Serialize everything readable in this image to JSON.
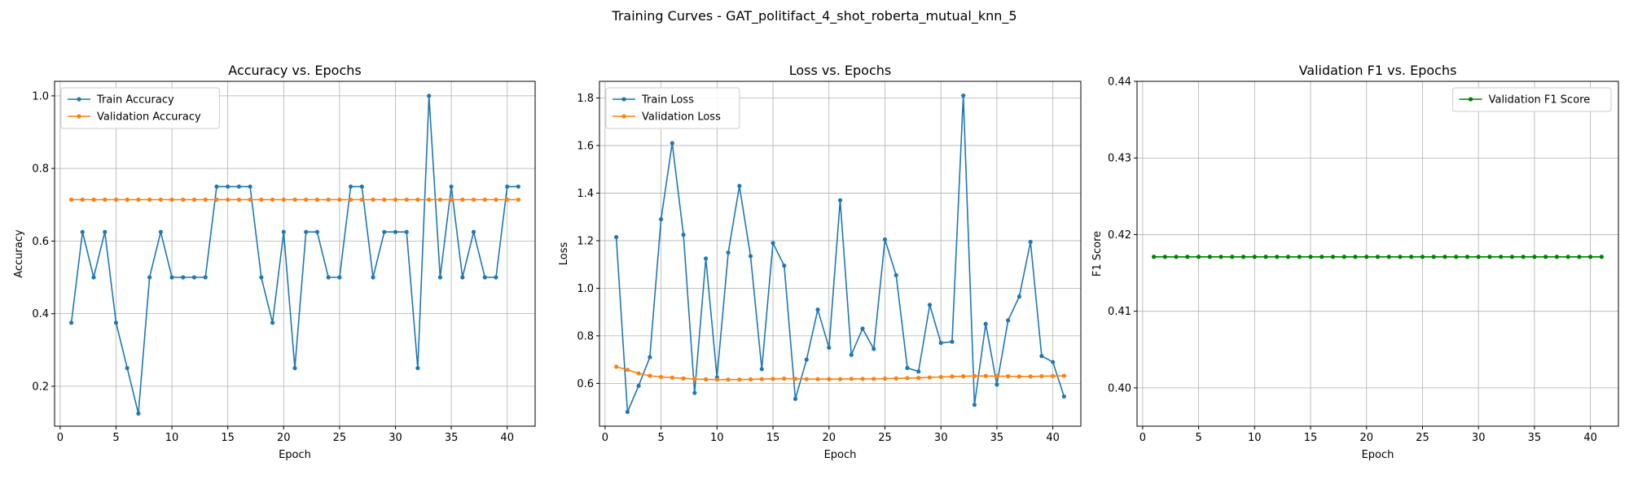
{
  "suptitle": "Training Curves - GAT_politifact_4_shot_roberta_mutual_knn_5",
  "colors": {
    "blue": "#1f77b4",
    "orange": "#ff7f0e",
    "green": "#008000",
    "grid": "#b0b0b0"
  },
  "chart_data": [
    {
      "type": "line",
      "title": "Accuracy vs. Epochs",
      "xlabel": "Epoch",
      "ylabel": "Accuracy",
      "xlim": [
        -0.5,
        42.5
      ],
      "ylim": [
        0.09,
        1.04
      ],
      "xticks": [
        0,
        5,
        10,
        15,
        20,
        25,
        30,
        35,
        40
      ],
      "yticks": [
        0.2,
        0.4,
        0.6,
        0.8,
        1.0
      ],
      "ytick_labels": [
        "0.2",
        "0.4",
        "0.6",
        "0.8",
        "1.0"
      ],
      "grid": true,
      "legend_loc": "upper-left",
      "x": [
        1,
        2,
        3,
        4,
        5,
        6,
        7,
        8,
        9,
        10,
        11,
        12,
        13,
        14,
        15,
        16,
        17,
        18,
        19,
        20,
        21,
        22,
        23,
        24,
        25,
        26,
        27,
        28,
        29,
        30,
        31,
        32,
        33,
        34,
        35,
        36,
        37,
        38,
        39,
        40,
        41
      ],
      "series": [
        {
          "name": "Train Accuracy",
          "color": "#1f77b4",
          "values": [
            0.375,
            0.625,
            0.5,
            0.625,
            0.375,
            0.25,
            0.125,
            0.5,
            0.625,
            0.5,
            0.5,
            0.5,
            0.5,
            0.75,
            0.75,
            0.75,
            0.75,
            0.5,
            0.375,
            0.625,
            0.25,
            0.625,
            0.625,
            0.5,
            0.5,
            0.75,
            0.75,
            0.5,
            0.625,
            0.625,
            0.625,
            0.25,
            1.0,
            0.5,
            0.75,
            0.5,
            0.625,
            0.5,
            0.5,
            0.75,
            0.75
          ]
        },
        {
          "name": "Validation Accuracy",
          "color": "#ff7f0e",
          "values": [
            0.714,
            0.714,
            0.714,
            0.714,
            0.714,
            0.714,
            0.714,
            0.714,
            0.714,
            0.714,
            0.714,
            0.714,
            0.714,
            0.714,
            0.714,
            0.714,
            0.714,
            0.714,
            0.714,
            0.714,
            0.714,
            0.714,
            0.714,
            0.714,
            0.714,
            0.714,
            0.714,
            0.714,
            0.714,
            0.714,
            0.714,
            0.714,
            0.714,
            0.714,
            0.714,
            0.714,
            0.714,
            0.714,
            0.714,
            0.714,
            0.714
          ]
        }
      ]
    },
    {
      "type": "line",
      "title": "Loss vs. Epochs",
      "xlabel": "Epoch",
      "ylabel": "Loss",
      "xlim": [
        -0.5,
        42.5
      ],
      "ylim": [
        0.42,
        1.87
      ],
      "xticks": [
        0,
        5,
        10,
        15,
        20,
        25,
        30,
        35,
        40
      ],
      "yticks": [
        0.6,
        0.8,
        1.0,
        1.2,
        1.4,
        1.6,
        1.8
      ],
      "ytick_labels": [
        "0.6",
        "0.8",
        "1.0",
        "1.2",
        "1.4",
        "1.6",
        "1.8"
      ],
      "grid": true,
      "legend_loc": "upper-left",
      "x": [
        1,
        2,
        3,
        4,
        5,
        6,
        7,
        8,
        9,
        10,
        11,
        12,
        13,
        14,
        15,
        16,
        17,
        18,
        19,
        20,
        21,
        22,
        23,
        24,
        25,
        26,
        27,
        28,
        29,
        30,
        31,
        32,
        33,
        34,
        35,
        36,
        37,
        38,
        39,
        40,
        41
      ],
      "series": [
        {
          "name": "Train Loss",
          "color": "#1f77b4",
          "values": [
            1.215,
            0.48,
            0.59,
            0.71,
            1.29,
            1.61,
            1.225,
            0.56,
            1.125,
            0.625,
            1.15,
            1.43,
            1.135,
            0.66,
            1.19,
            1.095,
            0.535,
            0.7,
            0.91,
            0.75,
            1.37,
            0.72,
            0.83,
            0.745,
            1.205,
            1.055,
            0.665,
            0.65,
            0.93,
            0.77,
            0.775,
            1.81,
            0.51,
            0.85,
            0.595,
            0.865,
            0.965,
            1.195,
            0.715,
            0.69,
            0.545
          ]
        },
        {
          "name": "Validation Loss",
          "color": "#ff7f0e",
          "values": [
            0.67,
            0.657,
            0.642,
            0.632,
            0.627,
            0.624,
            0.621,
            0.618,
            0.617,
            0.616,
            0.616,
            0.616,
            0.617,
            0.618,
            0.619,
            0.62,
            0.619,
            0.618,
            0.618,
            0.618,
            0.618,
            0.619,
            0.619,
            0.619,
            0.62,
            0.621,
            0.622,
            0.623,
            0.625,
            0.627,
            0.629,
            0.63,
            0.631,
            0.631,
            0.63,
            0.63,
            0.629,
            0.629,
            0.63,
            0.631,
            0.632
          ]
        }
      ]
    },
    {
      "type": "line",
      "title": "Validation F1 vs. Epochs",
      "xlabel": "Epoch",
      "ylabel": "F1 Score",
      "xlim": [
        -0.5,
        42.5
      ],
      "ylim": [
        0.395,
        0.44
      ],
      "xticks": [
        0,
        5,
        10,
        15,
        20,
        25,
        30,
        35,
        40
      ],
      "yticks": [
        0.4,
        0.41,
        0.42,
        0.43,
        0.44
      ],
      "ytick_labels": [
        "0.40",
        "0.41",
        "0.42",
        "0.43",
        "0.44"
      ],
      "grid": true,
      "legend_loc": "upper-right",
      "x": [
        1,
        2,
        3,
        4,
        5,
        6,
        7,
        8,
        9,
        10,
        11,
        12,
        13,
        14,
        15,
        16,
        17,
        18,
        19,
        20,
        21,
        22,
        23,
        24,
        25,
        26,
        27,
        28,
        29,
        30,
        31,
        32,
        33,
        34,
        35,
        36,
        37,
        38,
        39,
        40,
        41
      ],
      "series": [
        {
          "name": "Validation F1 Score",
          "color": "#008000",
          "values": [
            0.4171,
            0.4171,
            0.4171,
            0.4171,
            0.4171,
            0.4171,
            0.4171,
            0.4171,
            0.4171,
            0.4171,
            0.4171,
            0.4171,
            0.4171,
            0.4171,
            0.4171,
            0.4171,
            0.4171,
            0.4171,
            0.4171,
            0.4171,
            0.4171,
            0.4171,
            0.4171,
            0.4171,
            0.4171,
            0.4171,
            0.4171,
            0.4171,
            0.4171,
            0.4171,
            0.4171,
            0.4171,
            0.4171,
            0.4171,
            0.4171,
            0.4171,
            0.4171,
            0.4171,
            0.4171,
            0.4171,
            0.4171
          ]
        }
      ]
    }
  ]
}
